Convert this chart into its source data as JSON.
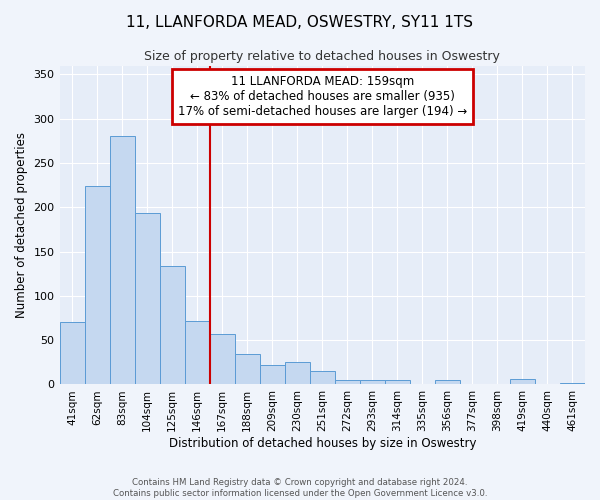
{
  "title": "11, LLANFORDA MEAD, OSWESTRY, SY11 1TS",
  "subtitle": "Size of property relative to detached houses in Oswestry",
  "xlabel": "Distribution of detached houses by size in Oswestry",
  "ylabel": "Number of detached properties",
  "bar_labels": [
    "41sqm",
    "62sqm",
    "83sqm",
    "104sqm",
    "125sqm",
    "146sqm",
    "167sqm",
    "188sqm",
    "209sqm",
    "230sqm",
    "251sqm",
    "272sqm",
    "293sqm",
    "314sqm",
    "335sqm",
    "356sqm",
    "377sqm",
    "398sqm",
    "419sqm",
    "440sqm",
    "461sqm"
  ],
  "bar_values": [
    70,
    224,
    280,
    193,
    134,
    72,
    57,
    34,
    22,
    25,
    15,
    5,
    5,
    5,
    1,
    5,
    1,
    1,
    6,
    1,
    2
  ],
  "bar_color": "#c5d8f0",
  "bar_edge_color": "#5b9bd5",
  "vline_x_index": 6,
  "vline_color": "#cc0000",
  "ylim": [
    0,
    360
  ],
  "yticks": [
    0,
    50,
    100,
    150,
    200,
    250,
    300,
    350
  ],
  "annotation_title": "11 LLANFORDA MEAD: 159sqm",
  "annotation_line1": "← 83% of detached houses are smaller (935)",
  "annotation_line2": "17% of semi-detached houses are larger (194) →",
  "annotation_box_color": "#cc0000",
  "footer_line1": "Contains HM Land Registry data © Crown copyright and database right 2024.",
  "footer_line2": "Contains public sector information licensed under the Open Government Licence v3.0.",
  "fig_background": "#f0f4fb",
  "plot_background": "#e6edf8"
}
